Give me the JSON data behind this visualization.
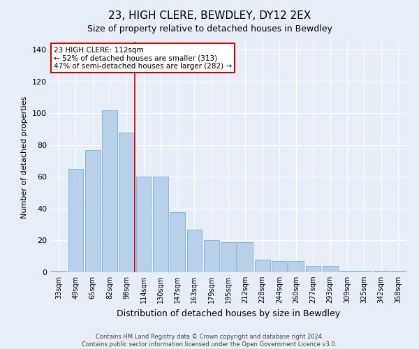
{
  "title_line1": "23, HIGH CLERE, BEWDLEY, DY12 2EX",
  "title_line2": "Size of property relative to detached houses in Bewdley",
  "xlabel": "Distribution of detached houses by size in Bewdley",
  "ylabel": "Number of detached properties",
  "footnote": "Contains HM Land Registry data © Crown copyright and database right 2024.\nContains public sector information licensed under the Open Government Licence v3.0.",
  "categories": [
    "33sqm",
    "49sqm",
    "65sqm",
    "82sqm",
    "98sqm",
    "114sqm",
    "130sqm",
    "147sqm",
    "163sqm",
    "179sqm",
    "195sqm",
    "212sqm",
    "228sqm",
    "244sqm",
    "260sqm",
    "277sqm",
    "293sqm",
    "309sqm",
    "325sqm",
    "342sqm",
    "358sqm"
  ],
  "values": [
    1,
    65,
    77,
    102,
    88,
    60,
    60,
    38,
    27,
    20,
    19,
    19,
    8,
    7,
    7,
    4,
    4,
    1,
    1,
    1,
    1
  ],
  "bar_color": "#b8d0ea",
  "bar_edge_color": "#7aafd4",
  "annotation_text": "23 HIGH CLERE: 112sqm\n← 52% of detached houses are smaller (313)\n47% of semi-detached houses are larger (282) →",
  "annotation_box_color": "#ffffff",
  "annotation_box_edge": "#cc0000",
  "annotation_text_color": "#000000",
  "vline_color": "#cc0000",
  "bg_color": "#e8eef8",
  "plot_bg_color": "#e8eef8",
  "ylim": [
    0,
    145
  ],
  "yticks": [
    0,
    20,
    40,
    60,
    80,
    100,
    120,
    140
  ],
  "grid_color": "#ffffff",
  "title_fontsize": 11,
  "subtitle_fontsize": 9,
  "xlabel_fontsize": 9,
  "ylabel_fontsize": 8
}
